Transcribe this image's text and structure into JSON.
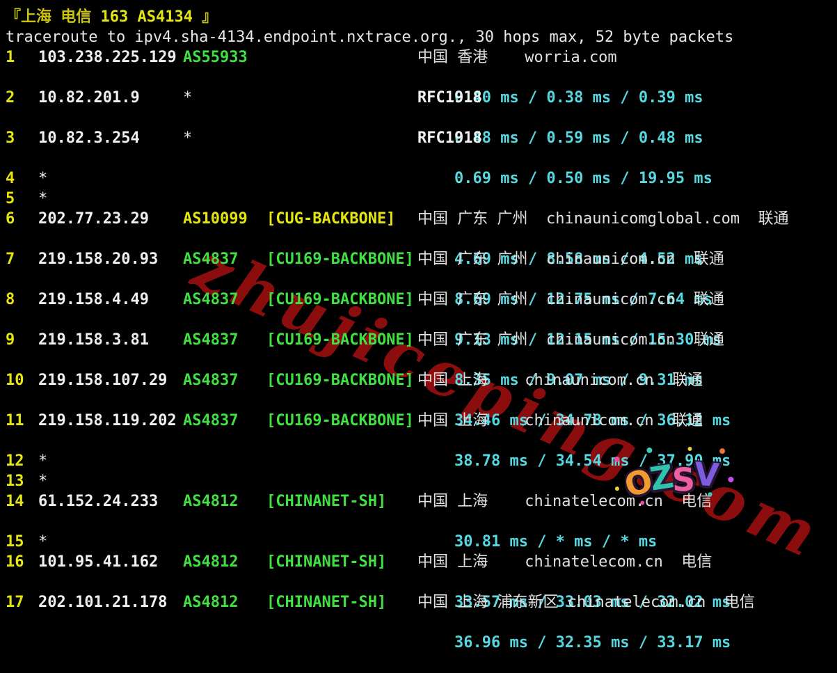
{
  "terminal": {
    "title_prefix": "『上海 电信 ",
    "title_highlight": "163 AS4134",
    "title_suffix": " 』",
    "trace_header": "traceroute to ipv4.sha-4134.endpoint.nxtrace.org., 30 hops max, 52 byte packets",
    "hops": [
      {
        "num": "1",
        "ip": "103.238.225.129",
        "asn": "AS55933",
        "asn_color": "green",
        "tag": "",
        "info": "中国 香港    worria.com",
        "info_bold": false,
        "rtt": "0.40 ms / 0.38 ms / 0.39 ms"
      },
      {
        "num": "2",
        "ip": "10.82.201.9",
        "asn": "*",
        "asn_color": "star",
        "tag": "",
        "info": "RFC1918",
        "info_bold": true,
        "rtt": "0.48 ms / 0.59 ms / 0.48 ms"
      },
      {
        "num": "3",
        "ip": "10.82.3.254",
        "asn": "*",
        "asn_color": "star",
        "tag": "",
        "info": "RFC1918",
        "info_bold": true,
        "rtt": "0.69 ms / 0.50 ms / 19.95 ms"
      },
      {
        "num": "4",
        "ip": "*",
        "asn": "",
        "tag": "",
        "info": "",
        "rtt": ""
      },
      {
        "num": "5",
        "ip": "*",
        "asn": "",
        "tag": "",
        "info": "",
        "rtt": ""
      },
      {
        "num": "6",
        "ip": "202.77.23.29",
        "asn": "AS10099",
        "asn_color": "yellow",
        "tag": "[CUG-BACKBONE]",
        "tag_color": "yellow",
        "info": "中国 广东 广州  chinaunicomglobal.com  联通",
        "info_bold": false,
        "rtt": "4.69 ms / 8.58 ms / 4.52 ms"
      },
      {
        "num": "7",
        "ip": "219.158.20.93",
        "asn": "AS4837",
        "asn_color": "green",
        "tag": "[CU169-BACKBONE]",
        "tag_color": "green",
        "info": "中国 广东 广州  chinaunicom.cn  联通",
        "info_bold": false,
        "rtt": "8.69 ms / 12.75 ms / 7.64 ms"
      },
      {
        "num": "8",
        "ip": "219.158.4.49",
        "asn": "AS4837",
        "asn_color": "green",
        "tag": "[CU169-BACKBONE]",
        "tag_color": "green",
        "info": "中国 广东 广州  chinaunicom.cn  联通",
        "info_bold": false,
        "rtt": "9.13 ms / 12.15 ms / 15.30 ms"
      },
      {
        "num": "9",
        "ip": "219.158.3.81",
        "asn": "AS4837",
        "asn_color": "green",
        "tag": "[CU169-BACKBONE]",
        "tag_color": "green",
        "info": "中国 广东 广州  chinaunicom.cn  联通",
        "info_bold": false,
        "rtt": "8.35 ms / 9.07 ms / 9.31 ms"
      },
      {
        "num": "10",
        "ip": "219.158.107.29",
        "asn": "AS4837",
        "asn_color": "green",
        "tag": "[CU169-BACKBONE]",
        "tag_color": "green",
        "info": "中国 上海    chinaunicom.cn  联通",
        "info_bold": false,
        "rtt": "34.46 ms / 34.78 ms / 36.12 ms"
      },
      {
        "num": "11",
        "ip": "219.158.119.202",
        "asn": "AS4837",
        "asn_color": "green",
        "tag": "[CU169-BACKBONE]",
        "tag_color": "green",
        "info": "中国 上海    chinaunicom.cn  联通",
        "info_bold": false,
        "rtt": "38.78 ms / 34.54 ms / 37.90 ms"
      },
      {
        "num": "12",
        "ip": "*",
        "asn": "",
        "tag": "",
        "info": "",
        "rtt": ""
      },
      {
        "num": "13",
        "ip": "*",
        "asn": "",
        "tag": "",
        "info": "",
        "rtt": ""
      },
      {
        "num": "14",
        "ip": "61.152.24.233",
        "asn": "AS4812",
        "asn_color": "green",
        "tag": "[CHINANET-SH]",
        "tag_color": "green",
        "info": "中国 上海    chinatelecom.cn  电信",
        "info_bold": false,
        "rtt": "30.81 ms / * ms / * ms"
      },
      {
        "num": "15",
        "ip": "*",
        "asn": "",
        "tag": "",
        "info": "",
        "rtt": ""
      },
      {
        "num": "16",
        "ip": "101.95.41.162",
        "asn": "AS4812",
        "asn_color": "green",
        "tag": "[CHINANET-SH]",
        "tag_color": "green",
        "info": "中国 上海    chinatelecom.cn  电信",
        "info_bold": false,
        "rtt": "33.57 ms / 33.03 ms / 32.02 ms"
      },
      {
        "num": "17",
        "ip": "202.101.21.178",
        "asn": "AS4812",
        "asn_color": "green",
        "tag": "[CHINANET-SH]",
        "tag_color": "green",
        "info": "中国 上海 浦东新区 chinatelecom.cn  电信",
        "info_bold": false,
        "rtt": "36.96 ms / 32.35 ms / 33.17 ms"
      }
    ],
    "colors": {
      "background": "#000000",
      "hop_number_yellow": "#e5e510",
      "asn_green": "#41e041",
      "rtt_cyan": "#57d8e0",
      "text_white": "#f0f0f0",
      "watermark_red": "#8c0d0d"
    }
  },
  "watermarks": {
    "diagonal_text": "zhujiceping.com",
    "sticker_text": "OZSV",
    "sticker_colors": [
      "#f2992f",
      "#2fc3ae",
      "#ee5f9f",
      "#7e5ce0"
    ]
  }
}
